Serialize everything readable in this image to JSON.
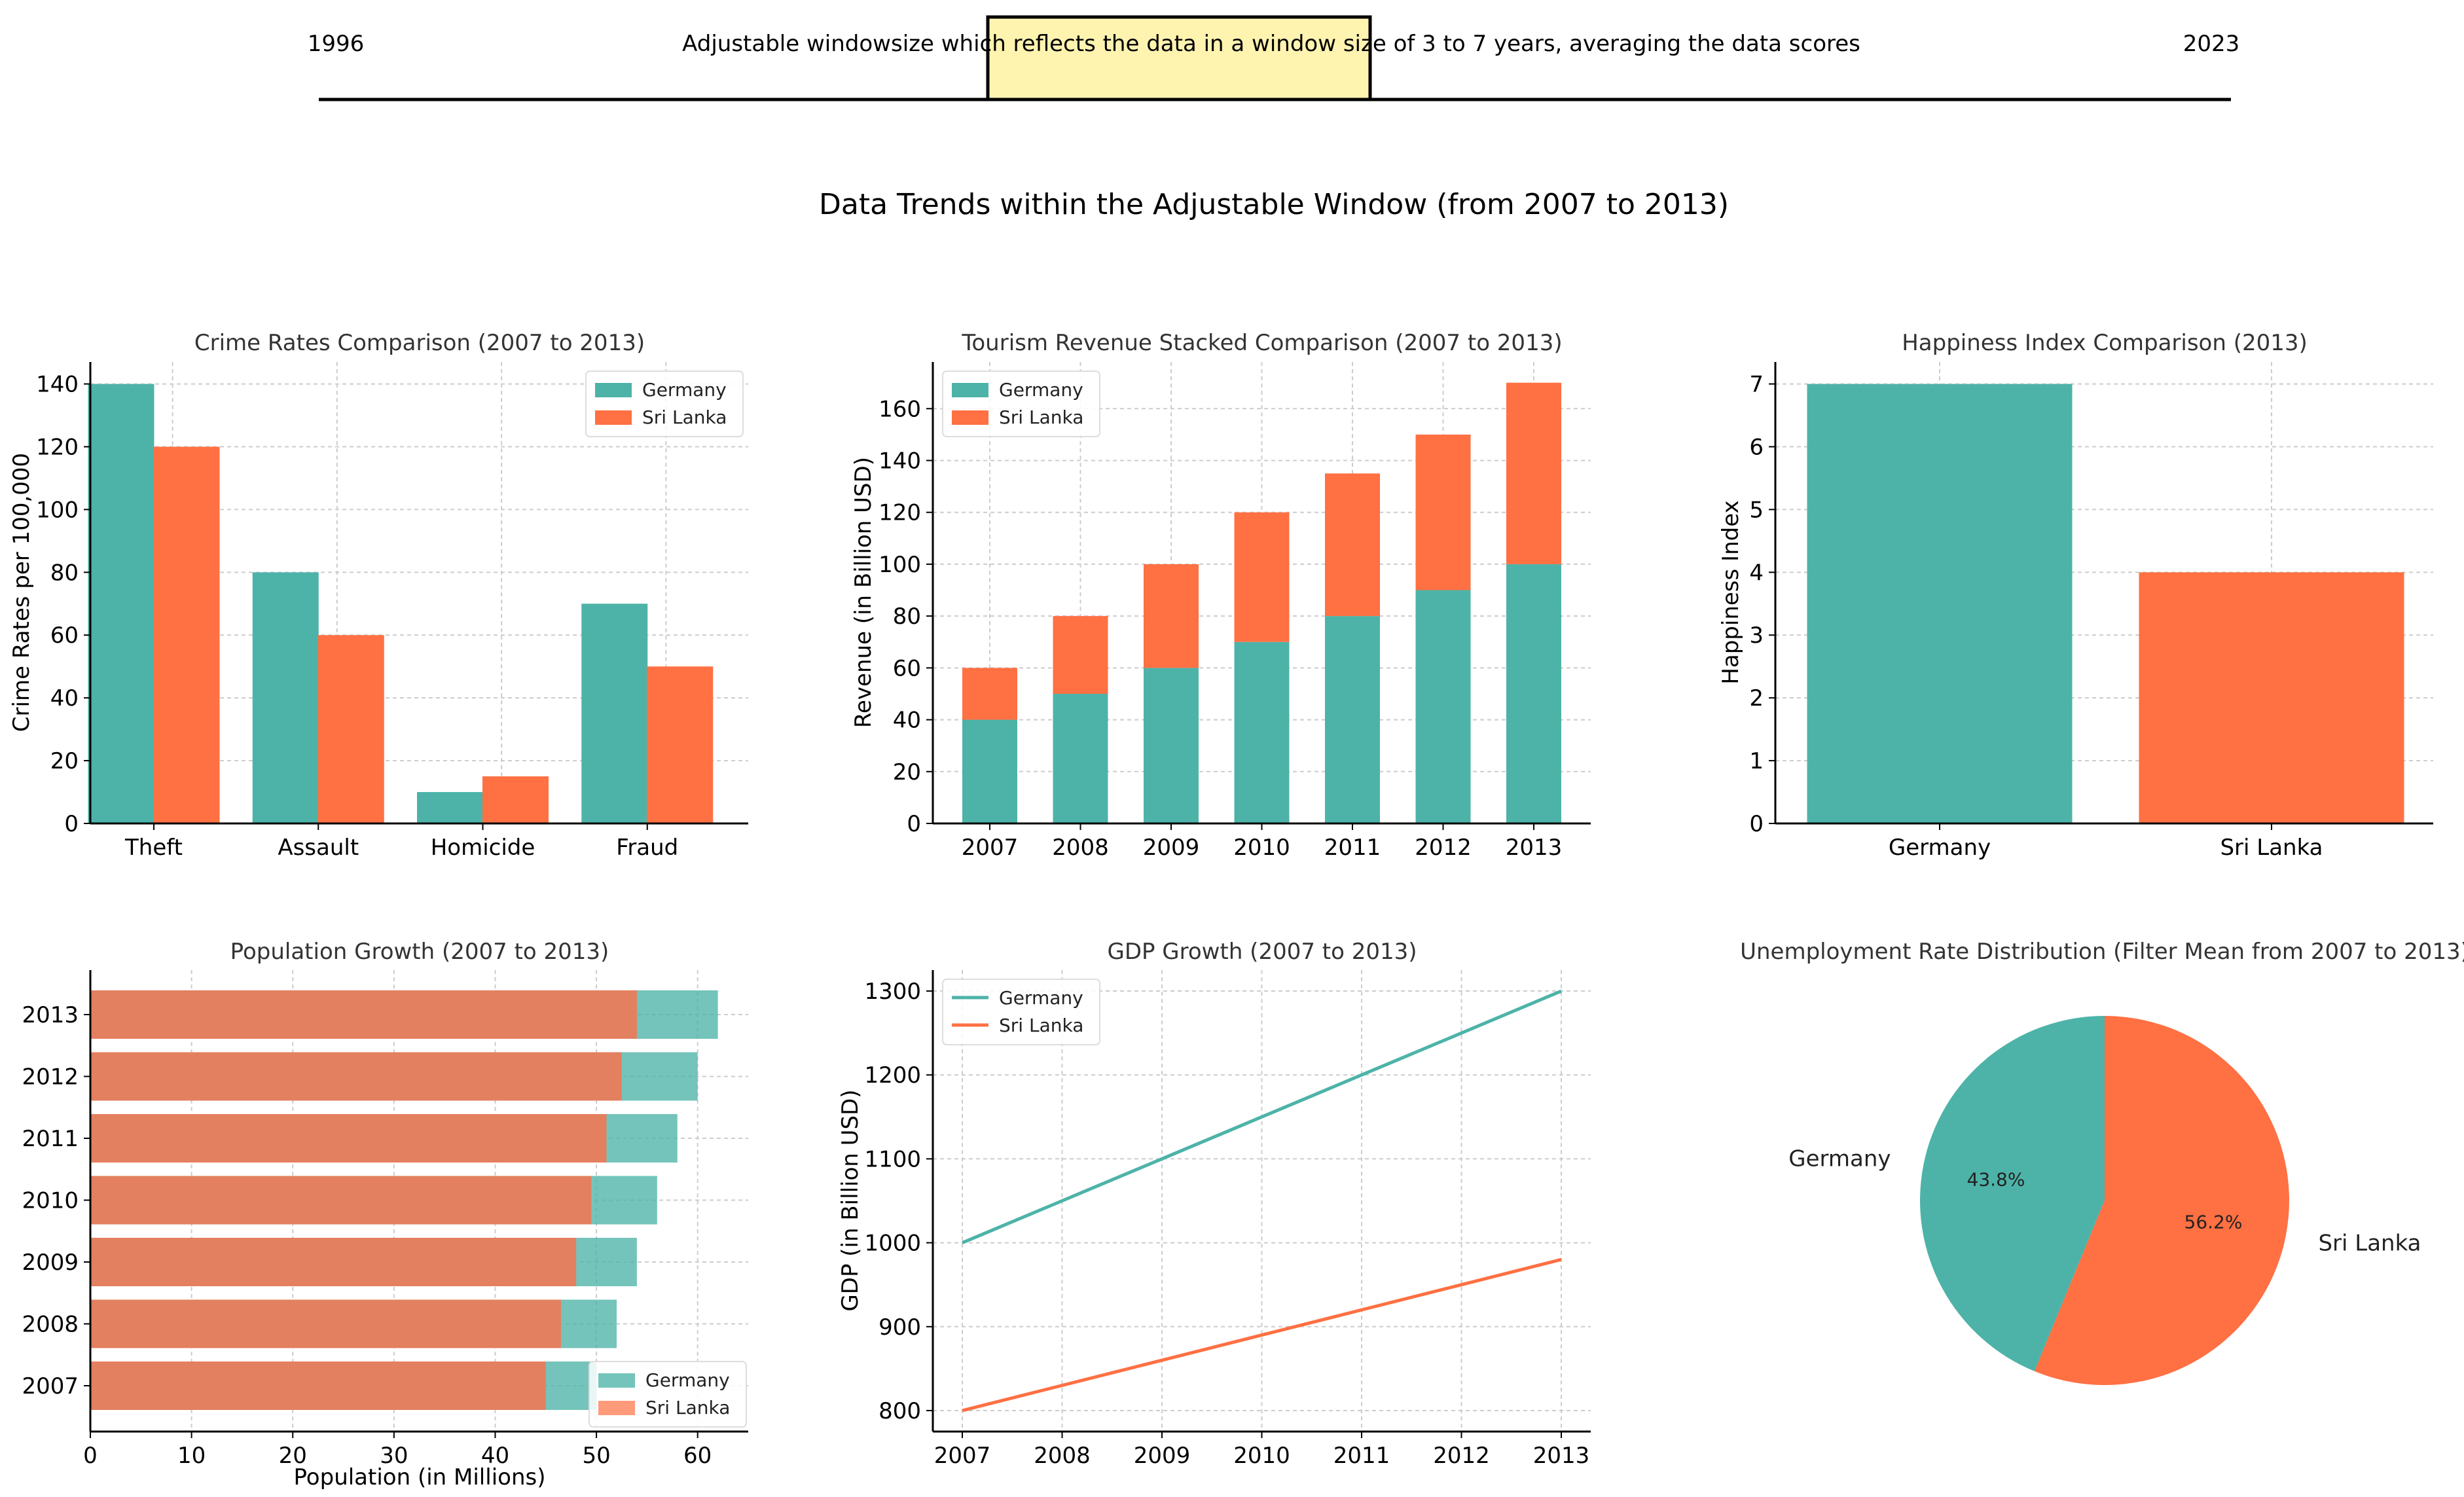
{
  "slider": {
    "start_label": "1996",
    "end_label": "2023",
    "caption": "Adjustable windowsize which reflects the data in a window size of 3 to 7 years, averaging the data scores",
    "range_min": 1996,
    "range_max": 2023,
    "window_start": 2007,
    "window_end": 2013,
    "highlight_color": "#FFF3B0"
  },
  "main_title": "Data Trends within the Adjustable Window (from 2007 to 2013)",
  "colors": {
    "germany": "#4DB3A8",
    "srilanka": "#FF7043",
    "overlap": "#E3805F"
  },
  "chart_data": [
    {
      "id": "crime",
      "type": "bar",
      "title": "Crime Rates Comparison (2007 to 2013)",
      "xlabel": "",
      "ylabel": "Crime Rates per 100,000",
      "categories": [
        "Theft",
        "Assault",
        "Homicide",
        "Fraud"
      ],
      "series": [
        {
          "name": "Germany",
          "values": [
            140,
            80,
            10,
            70
          ]
        },
        {
          "name": "Sri Lanka",
          "values": [
            120,
            60,
            15,
            50
          ]
        }
      ],
      "ylim": [
        0,
        147
      ],
      "yticks": [
        "0",
        "20",
        "40",
        "60",
        "80",
        "100",
        "120",
        "140"
      ],
      "legend": "top-right",
      "grid": true
    },
    {
      "id": "tourism",
      "type": "bar",
      "stacked": true,
      "title": "Tourism Revenue Stacked Comparison (2007 to 2013)",
      "xlabel": "",
      "ylabel": "Revenue (in Billion USD)",
      "categories": [
        "2007",
        "2008",
        "2009",
        "2010",
        "2011",
        "2012",
        "2013"
      ],
      "series": [
        {
          "name": "Germany",
          "values": [
            40,
            50,
            60,
            70,
            80,
            90,
            100
          ]
        },
        {
          "name": "Sri Lanka",
          "values": [
            20,
            30,
            40,
            50,
            55,
            60,
            70
          ]
        }
      ],
      "ylim": [
        0,
        178
      ],
      "yticks": [
        "0",
        "20",
        "40",
        "60",
        "80",
        "100",
        "120",
        "140",
        "160"
      ],
      "legend": "top-left",
      "grid": true
    },
    {
      "id": "happiness",
      "type": "bar",
      "title": "Happiness Index Comparison (2013)",
      "xlabel": "",
      "ylabel": "Happiness Index",
      "categories": [
        "Germany",
        "Sri Lanka"
      ],
      "values": [
        7,
        4
      ],
      "ylim": [
        0,
        7.35
      ],
      "yticks": [
        "0",
        "1",
        "2",
        "3",
        "4",
        "5",
        "6",
        "7"
      ],
      "grid": true
    },
    {
      "id": "population",
      "type": "bar",
      "orientation": "horizontal",
      "title": "Population Growth (2007 to 2013)",
      "xlabel": "Population (in Millions)",
      "ylabel": "",
      "categories": [
        "2007",
        "2008",
        "2009",
        "2010",
        "2011",
        "2012",
        "2013"
      ],
      "series": [
        {
          "name": "Germany",
          "values": [
            50,
            52,
            54,
            56,
            58,
            60,
            62
          ]
        },
        {
          "name": "Sri Lanka",
          "values": [
            45,
            46.5,
            48,
            49.5,
            51,
            52.5,
            54
          ]
        }
      ],
      "xlim": [
        0,
        65
      ],
      "xticks": [
        "0",
        "10",
        "20",
        "30",
        "40",
        "50",
        "60"
      ],
      "legend": "bottom-right",
      "grid": true
    },
    {
      "id": "gdp",
      "type": "line",
      "title": "GDP Growth (2007 to 2013)",
      "xlabel": "",
      "ylabel": "GDP (in Billion USD)",
      "x": [
        "2007",
        "2008",
        "2009",
        "2010",
        "2011",
        "2012",
        "2013"
      ],
      "series": [
        {
          "name": "Germany",
          "values": [
            1000,
            1050,
            1100,
            1150,
            1200,
            1250,
            1300
          ]
        },
        {
          "name": "Sri Lanka",
          "values": [
            800,
            830,
            860,
            890,
            920,
            950,
            980
          ]
        }
      ],
      "ylim": [
        775,
        1325
      ],
      "yticks": [
        "800",
        "900",
        "1000",
        "1100",
        "1200",
        "1300"
      ],
      "legend": "top-left",
      "grid": true
    },
    {
      "id": "unemployment",
      "type": "pie",
      "title": "Unemployment Rate Distribution (Filter Mean from 2007 to 2013)",
      "labels": [
        "Germany",
        "Sri Lanka"
      ],
      "values": [
        43.8,
        56.2
      ],
      "pct_labels": [
        "43.8%",
        "56.2%"
      ]
    }
  ]
}
